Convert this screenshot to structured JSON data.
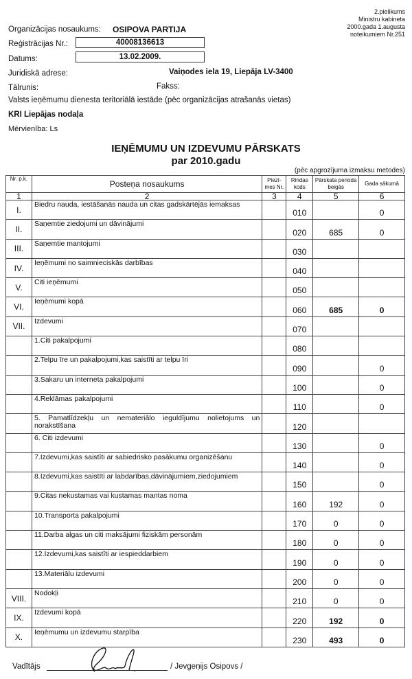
{
  "annex": [
    "2.pielikums",
    "Ministru kabineta",
    "2000.gada 1.augusta",
    "noteikumiem Nr.251"
  ],
  "org": {
    "name_label": "Organizācijas nosaukums:",
    "name": "OSIPOVA PARTIJA",
    "reg_label": "Reģistrācijas Nr.:",
    "reg": "40008136613",
    "date_label": "Datums:",
    "date": "13.02.2009.",
    "addr_label": "Juridiskā adrese:",
    "addr": "Vaiņodes iela 19, Liepāja LV-3400",
    "phone_label": "Tālrunis:",
    "fax_label": "Fakss:",
    "vid_label": "Valsts ieņēmumu dienesta teritoriālā iestāde (pēc organizācijas atrašanās vietas)",
    "vid": "KRI Liepājas nodaļa",
    "unit": "Mērvienība: Ls"
  },
  "title": "IEŅĒMUMU UN IZDEVUMU PĀRSKATS",
  "subtitle": "par 2010.gadu",
  "method": "(pēc apgrozījuma izmaksu metodes)",
  "table": {
    "headers": [
      "Nr. p.k.",
      "Posteņa nosaukums",
      "Piezī-mes Nr.",
      "Rindas kods",
      "Pārskata perioda beigās",
      "Gada sākumā"
    ],
    "col_numbers": [
      "1",
      "2",
      "3",
      "4",
      "5",
      "6"
    ],
    "rows": [
      {
        "nr": "I.",
        "name": "Biedru nauda, iestāšanās nauda un citas gadskārtējās iemaksas",
        "code": "010",
        "end": "",
        "start": "0"
      },
      {
        "nr": "II.",
        "name": "Saņemtie ziedojumi un dāvinājumi",
        "code": "020",
        "end": "685",
        "start": "0"
      },
      {
        "nr": "III.",
        "name": "Saņemtie mantojumi",
        "code": "030",
        "end": "",
        "start": ""
      },
      {
        "nr": "IV.",
        "name": "Ieņēmumi no saimnieciskās darbības",
        "code": "040",
        "end": "",
        "start": ""
      },
      {
        "nr": "V.",
        "name": "Citi ieņēmumi",
        "code": "050",
        "end": "",
        "start": ""
      },
      {
        "nr": "VI.",
        "name": "Ieņēmumi kopā",
        "code": "060",
        "end": "685",
        "start": "0",
        "bold": true
      },
      {
        "nr": "VII.",
        "name": "Izdevumi",
        "code": "070",
        "end": "",
        "start": ""
      },
      {
        "nr": "",
        "name": "1.Citi pakalpojumi",
        "code": "080",
        "end": "",
        "start": ""
      },
      {
        "nr": "",
        "name": "2.Telpu īre un pakalpojumi,kas saistīti ar telpu īri",
        "code": "090",
        "end": "",
        "start": "0"
      },
      {
        "nr": "",
        "name": "3.Sakaru un interneta pakalpojumi",
        "code": "100",
        "end": "",
        "start": "0"
      },
      {
        "nr": "",
        "name": "4.Reklāmas pakalpojumi",
        "code": "110",
        "end": "",
        "start": "0"
      },
      {
        "nr": "",
        "name": "5. Pamatlīdzekļu un nemateriālo ieguldījumu nolietojums un norakstīšana",
        "code": "120",
        "end": "",
        "start": ""
      },
      {
        "nr": "",
        "name": "6. Citi izdevumi",
        "code": "130",
        "end": "",
        "start": "0"
      },
      {
        "nr": "",
        "name": "7.Izdevumi,kas saistīti ar sabiedrisko pasākumu organizēšanu",
        "code": "140",
        "end": "",
        "start": "0"
      },
      {
        "nr": "",
        "name": "8.Izdevumi,kas saistīti ar labdarības,dāvinājumiem,ziedojumiem",
        "code": "150",
        "end": "",
        "start": "0"
      },
      {
        "nr": "",
        "name": "9.Citas nekustamas vai kustamas mantas noma",
        "code": "160",
        "end": "192",
        "start": "0"
      },
      {
        "nr": "",
        "name": "10.Transporta pakalpojumi",
        "code": "170",
        "end": "0",
        "start": "0"
      },
      {
        "nr": "",
        "name": "11.Darba algas un citi maksājumi fiziskām personām",
        "code": "180",
        "end": "0",
        "start": "0"
      },
      {
        "nr": "",
        "name": "12.Izdevumi,kas saistīti ar iespieddarbiem",
        "code": "190",
        "end": "0",
        "start": "0"
      },
      {
        "nr": "",
        "name": "13.Materiālu izdevumi",
        "code": "200",
        "end": "0",
        "start": "0"
      },
      {
        "nr": "VIII.",
        "name": "Nodokļi",
        "code": "210",
        "end": "0",
        "start": "0"
      },
      {
        "nr": "IX.",
        "name": "Izdevumi kopā",
        "code": "220",
        "end": "192",
        "start": "0",
        "bold": true
      },
      {
        "nr": "X.",
        "name": "Ieņēmumu un izdevumu starpība",
        "code": "230",
        "end": "493",
        "start": "0",
        "bold": true
      }
    ]
  },
  "signature": {
    "label": "Vadītājs",
    "name": "/ Jevgeņijs Osipovs /"
  }
}
